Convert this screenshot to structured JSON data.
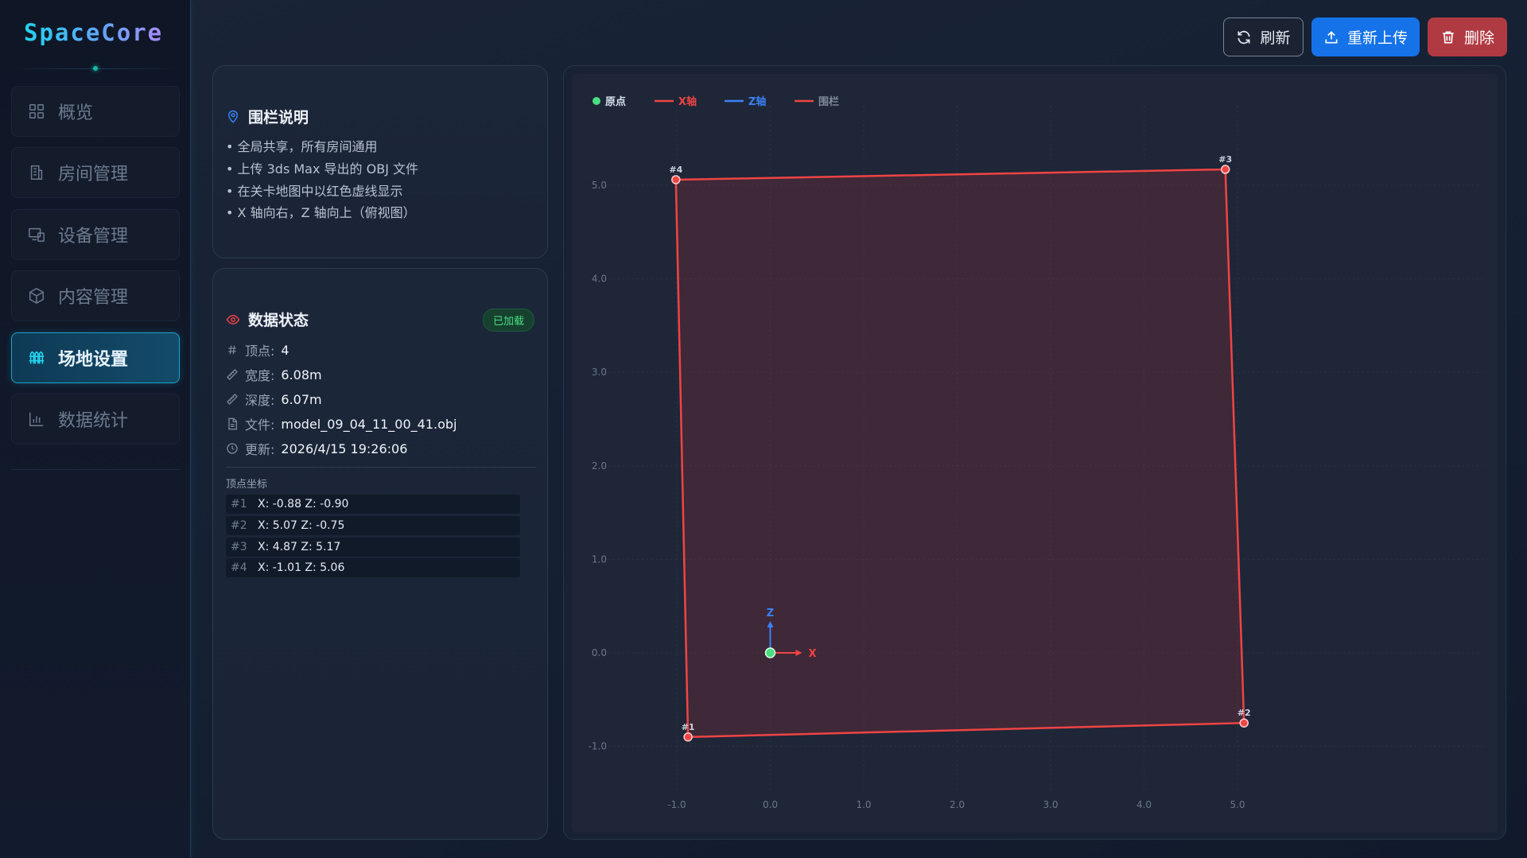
{
  "app": {
    "logo": "SpaceCore"
  },
  "sidebar": {
    "items": [
      {
        "label": "概览",
        "icon": "grid-icon",
        "active": false
      },
      {
        "label": "房间管理",
        "icon": "building-icon",
        "active": false
      },
      {
        "label": "设备管理",
        "icon": "devices-icon",
        "active": false
      },
      {
        "label": "内容管理",
        "icon": "box-icon",
        "active": false
      },
      {
        "label": "场地设置",
        "icon": "fence-icon",
        "active": true
      },
      {
        "label": "数据统计",
        "icon": "bar-chart-icon",
        "active": false
      }
    ]
  },
  "toolbar": {
    "refresh_label": "刷新",
    "reupload_label": "重新上传",
    "delete_label": "删除"
  },
  "fence_panel": {
    "title": "围栏说明",
    "bullets": [
      "• 全局共享，所有房间通用",
      "• 上传 3ds Max 导出的 OBJ 文件",
      "• 在关卡地图中以红色虚线显示",
      "• X 轴向右，Z 轴向上（俯视图）"
    ]
  },
  "data_panel": {
    "title": "数据状态",
    "badge": "已加载",
    "vertices_label": "顶点:",
    "vertices_value": "4",
    "width_label": "宽度:",
    "width_value": "6.08m",
    "depth_label": "深度:",
    "depth_value": "6.07m",
    "file_label": "文件:",
    "file_value": "model_09_04_11_00_41.obj",
    "updated_label": "更新:",
    "updated_value": "2026/4/15 19:26:06",
    "coords_title": "顶点坐标",
    "coords": [
      {
        "idx": "#1",
        "text": "X: -0.88  Z: -0.90"
      },
      {
        "idx": "#2",
        "text": "X: 5.07  Z: -0.75"
      },
      {
        "idx": "#3",
        "text": "X: 4.87  Z: 5.17"
      },
      {
        "idx": "#4",
        "text": "X: -1.01  Z: 5.06"
      }
    ]
  },
  "chart_data": {
    "type": "scatter",
    "legend": [
      {
        "label": "原点",
        "color": "#4ade80",
        "marker": "dot"
      },
      {
        "label": "X轴",
        "color": "#ef4444",
        "marker": "line"
      },
      {
        "label": "Z轴",
        "color": "#3b82f6",
        "marker": "line"
      },
      {
        "label": "围栏",
        "color": "#ef4444",
        "marker": "line"
      }
    ],
    "legend_position": "top-left",
    "x_ticks": [
      "-1.0",
      "0.0",
      "1.0",
      "2.0",
      "3.0",
      "4.0",
      "5.0"
    ],
    "y_ticks": [
      "-1.0",
      "0.0",
      "1.0",
      "2.0",
      "3.0",
      "4.0",
      "5.0"
    ],
    "xlim": [
      -1.8,
      7.2
    ],
    "ylim": [
      -1.8,
      5.6
    ],
    "grid": true,
    "fence_color": "#ef4444",
    "fence_fill": "rgba(180,50,60,0.22)",
    "vertices": [
      {
        "label": "#1",
        "x": -0.88,
        "z": -0.9
      },
      {
        "label": "#2",
        "x": 5.07,
        "z": -0.75
      },
      {
        "label": "#3",
        "x": 4.87,
        "z": 5.17
      },
      {
        "label": "#4",
        "x": -1.01,
        "z": 5.06
      }
    ],
    "origin": {
      "x": 0,
      "z": 0
    },
    "axis_labels": {
      "x": "X",
      "z": "Z"
    }
  }
}
